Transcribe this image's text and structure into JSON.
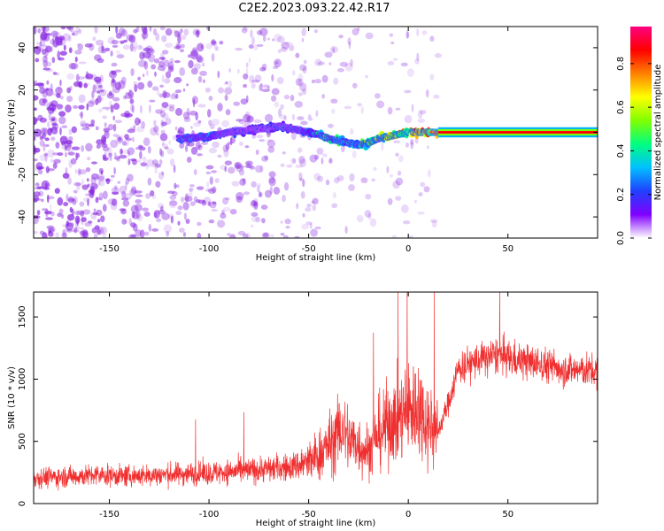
{
  "figure": {
    "title": "C2E2.2023.093.22.42.R17"
  },
  "colors": {
    "axis": "#000000",
    "snr_line": "#f03030",
    "speckle": "#8a2be2"
  },
  "colormap": [
    "#ffffff",
    "#8000ff",
    "#2040ff",
    "#00c0ff",
    "#00ff80",
    "#80ff00",
    "#ffff00",
    "#ff8000",
    "#ff0000",
    "#ff0080"
  ],
  "chart_data": [
    {
      "type": "heatmap",
      "title": "C2E2.2023.093.22.42.R17",
      "xlabel": "Height of straight line (km)",
      "ylabel": "Frequency (Hz)",
      "xlim": [
        -188,
        95
      ],
      "ylim": [
        -50,
        50
      ],
      "xticks": [
        -150,
        -100,
        -50,
        0,
        50
      ],
      "xtick_labels": [
        "-150",
        "-100",
        "-50",
        "0",
        "50"
      ],
      "yticks": [
        -40,
        -20,
        0,
        20,
        40
      ],
      "ytick_labels": [
        "-40",
        "-20",
        "0",
        "20",
        "40"
      ],
      "colorbar": {
        "label": "Normalized spectral amplitude",
        "range": [
          0,
          0.97
        ],
        "ticks": [
          0.0,
          0.2,
          0.4,
          0.6,
          0.8
        ],
        "tick_labels": [
          "0.0",
          "0.2",
          "0.4",
          "0.6",
          "0.8"
        ]
      },
      "ridge": {
        "x": [
          -115,
          -100,
          -90,
          -80,
          -70,
          -65,
          -60,
          -55,
          -50,
          -45,
          -40,
          -35,
          -30,
          -25,
          -20,
          -15,
          -10,
          -5,
          0,
          5,
          10,
          15,
          95
        ],
        "freq": [
          -3,
          -2,
          0,
          1,
          2,
          3,
          2,
          1,
          0,
          -1,
          -3,
          -4,
          -5,
          -6,
          -5,
          -3,
          -2,
          -1,
          0,
          0,
          0,
          0,
          0
        ],
        "amplitude": [
          0.25,
          0.28,
          0.22,
          0.2,
          0.2,
          0.22,
          0.22,
          0.25,
          0.3,
          0.4,
          0.42,
          0.45,
          0.42,
          0.45,
          0.5,
          0.55,
          0.6,
          0.7,
          0.75,
          0.8,
          0.85,
          0.9,
          0.95
        ]
      },
      "grid": false
    },
    {
      "type": "line",
      "xlabel": "Height of straight line (km)",
      "ylabel": "SNR (10 * v/v)",
      "xlim": [
        -188,
        95
      ],
      "ylim": [
        0,
        1700
      ],
      "xticks": [
        -150,
        -100,
        -50,
        0,
        50
      ],
      "xtick_labels": [
        "-150",
        "-100",
        "-50",
        "0",
        "50"
      ],
      "yticks": [
        0,
        500,
        1000,
        1500
      ],
      "ytick_labels": [
        "0",
        "500",
        "1000",
        "1500"
      ],
      "series": [
        {
          "x": [
            -188,
            -175,
            -160,
            -150,
            -140,
            -125,
            -110,
            -100,
            -90,
            -80,
            -70,
            -60,
            -55,
            -50,
            -45,
            -40,
            -35,
            -33,
            -30,
            -25,
            -20,
            -15,
            -10,
            -5,
            0,
            5,
            10,
            15,
            20,
            25,
            30,
            35,
            40,
            45,
            50,
            60,
            70,
            80,
            95
          ],
          "y": [
            210,
            215,
            225,
            225,
            220,
            230,
            240,
            245,
            255,
            265,
            280,
            290,
            310,
            330,
            390,
            470,
            560,
            620,
            520,
            470,
            420,
            560,
            640,
            700,
            740,
            780,
            650,
            580,
            800,
            1080,
            1120,
            1150,
            1170,
            1200,
            1170,
            1140,
            1110,
            1080,
            1060
          ]
        }
      ],
      "grid": false
    }
  ]
}
